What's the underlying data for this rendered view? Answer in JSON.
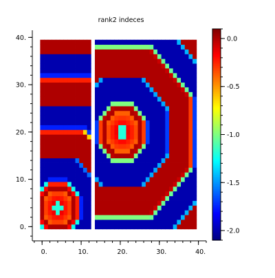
{
  "chart_data": {
    "type": "heatmap",
    "title": "rank2 indeces",
    "xlim": [
      -2.5,
      42
    ],
    "ylim": [
      -3,
      41.5
    ],
    "x_ticks": [
      0,
      10,
      20,
      30,
      40
    ],
    "x_tick_labels": [
      "0.",
      "10.",
      "20.",
      "30.",
      "40."
    ],
    "y_ticks": [
      0,
      10,
      20,
      30,
      40
    ],
    "y_tick_labels": [
      "0.",
      "10.",
      "20.",
      "30.",
      "40."
    ],
    "colorbar": {
      "range": [
        -2.1,
        0.1
      ],
      "ticks": [
        0.0,
        -0.5,
        -1.0,
        -1.5,
        -2.0
      ],
      "tick_labels": [
        "0.0",
        "-0.5",
        "-1.0",
        "-1.5",
        "-2.0"
      ],
      "colormap": "jet"
    },
    "panels": [
      {
        "x_range": [
          0,
          12
        ],
        "y_range": [
          0,
          39
        ],
        "center": [
          4,
          4
        ],
        "ring_period": 5.5,
        "peak_value": -0.4
      },
      {
        "x_range": [
          14,
          39
        ],
        "y_range": [
          0,
          39
        ],
        "center": [
          20.5,
          20
        ],
        "ring_period": 6,
        "peak_value": -0.4
      }
    ],
    "value_levels": {
      "red": 0.0,
      "blue": -2.0,
      "transition": -1.0
    }
  },
  "colors": {
    "axis": "#000000",
    "background": "#ffffff"
  }
}
